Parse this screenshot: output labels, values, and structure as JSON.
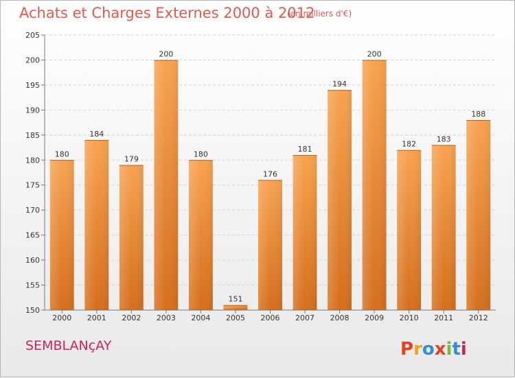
{
  "header": {
    "title": "Achats et Charges Externes 2000 à 2012",
    "subtitle": "(en milliers d'€)"
  },
  "footer": {
    "commune": "SEMBLANçAY",
    "logo": "Proxiti",
    "logo_colors": [
      "#e2421f",
      "#f5a21b",
      "#2f8ed8",
      "#e2421f",
      "#77b83a",
      "#2f8ed8",
      "#c8245a"
    ]
  },
  "chart_data": {
    "type": "bar",
    "categories": [
      "2000",
      "2001",
      "2002",
      "2003",
      "2004",
      "2005",
      "2006",
      "2007",
      "2008",
      "2009",
      "2010",
      "2011",
      "2012"
    ],
    "values": [
      180,
      184,
      179,
      200,
      180,
      151,
      176,
      181,
      194,
      200,
      182,
      183,
      188
    ],
    "ylim": [
      150,
      205
    ],
    "yticks": [
      150,
      155,
      160,
      165,
      170,
      175,
      180,
      185,
      190,
      195,
      200,
      205
    ],
    "grid": true,
    "bar_color_top": "#f7a350",
    "bar_color_bottom": "#d56e1c",
    "xlabel": "",
    "ylabel": ""
  }
}
